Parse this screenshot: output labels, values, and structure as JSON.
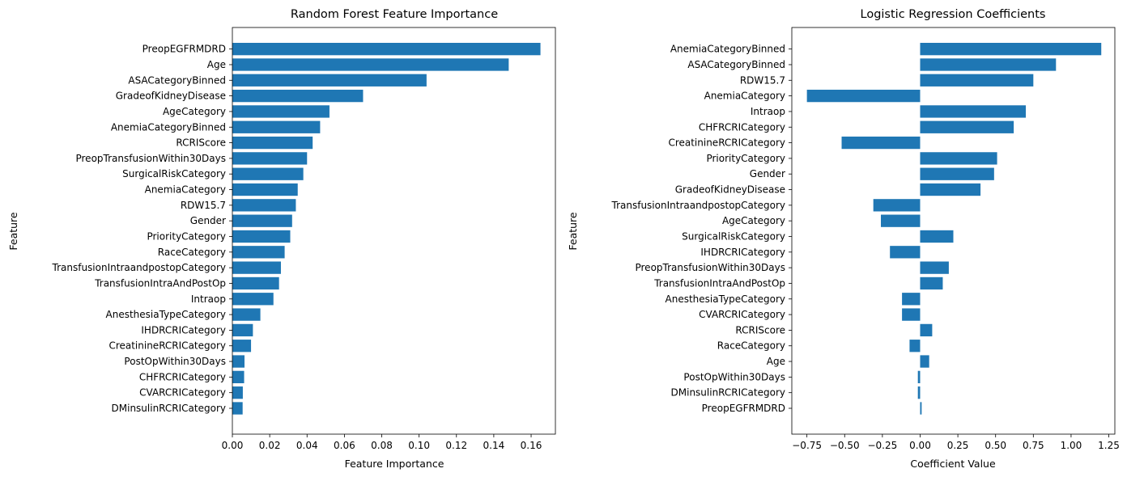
{
  "chart_data": [
    {
      "type": "bar",
      "orientation": "horizontal",
      "title": "Random Forest Feature Importance",
      "xlabel": "Feature Importance",
      "ylabel": "Feature",
      "xlim": [
        0,
        0.173
      ],
      "xticks": [
        0.0,
        0.02,
        0.04,
        0.06,
        0.08,
        0.1,
        0.12,
        0.14,
        0.16
      ],
      "xtick_labels": [
        "0.00",
        "0.02",
        "0.04",
        "0.06",
        "0.08",
        "0.10",
        "0.12",
        "0.14",
        "0.16"
      ],
      "bar_color": "#1f77b4",
      "grid": false,
      "categories": [
        "PreopEGFRMDRD",
        "Age",
        "ASACategoryBinned",
        "GradeofKidneyDisease",
        "AgeCategory",
        "AnemiaCategoryBinned",
        "RCRIScore",
        "PreopTransfusionWithin30Days",
        "SurgicalRiskCategory",
        "AnemiaCategory",
        "RDW15.7",
        "Gender",
        "PriorityCategory",
        "RaceCategory",
        "TransfusionIntraandpostopCategory",
        "TransfusionIntraAndPostOp",
        "Intraop",
        "AnesthesiaTypeCategory",
        "IHDRCRICategory",
        "CreatinineRCRICategory",
        "PostOpWithin30Days",
        "CHFRCRICategory",
        "CVARCRICategory",
        "DMinsulinRCRICategory"
      ],
      "values": [
        0.165,
        0.148,
        0.104,
        0.07,
        0.052,
        0.047,
        0.043,
        0.04,
        0.038,
        0.035,
        0.034,
        0.032,
        0.031,
        0.028,
        0.026,
        0.025,
        0.022,
        0.015,
        0.011,
        0.01,
        0.0065,
        0.0063,
        0.0056,
        0.0055
      ]
    },
    {
      "type": "bar",
      "orientation": "horizontal",
      "title": "Logistic Regression Coefficients",
      "xlabel": "Coefficient Value",
      "ylabel": "Feature",
      "xlim": [
        -0.85,
        1.29
      ],
      "xticks": [
        -0.75,
        -0.5,
        -0.25,
        0.0,
        0.25,
        0.5,
        0.75,
        1.0,
        1.25
      ],
      "xtick_labels": [
        "−0.75",
        "−0.50",
        "−0.25",
        "0.00",
        "0.25",
        "0.50",
        "0.75",
        "1.00",
        "1.25"
      ],
      "bar_color": "#1f77b4",
      "grid": false,
      "categories": [
        "AnemiaCategoryBinned",
        "ASACategoryBinned",
        "RDW15.7",
        "AnemiaCategory",
        "Intraop",
        "CHFRCRICategory",
        "CreatinineRCRICategory",
        "PriorityCategory",
        "Gender",
        "GradeofKidneyDisease",
        "TransfusionIntraandpostopCategory",
        "AgeCategory",
        "SurgicalRiskCategory",
        "IHDRCRICategory",
        "PreopTransfusionWithin30Days",
        "TransfusionIntraAndPostOp",
        "AnesthesiaTypeCategory",
        "CVARCRICategory",
        "RCRIScore",
        "RaceCategory",
        "Age",
        "PostOpWithin30Days",
        "DMinsulinRCRICategory",
        "PreopEGFRMDRD"
      ],
      "values": [
        1.2,
        0.9,
        0.75,
        -0.75,
        0.7,
        0.62,
        -0.52,
        0.51,
        0.49,
        0.4,
        -0.31,
        -0.26,
        0.22,
        -0.2,
        0.19,
        0.15,
        -0.12,
        -0.12,
        0.08,
        -0.07,
        0.06,
        -0.015,
        -0.015,
        0.01
      ]
    }
  ]
}
